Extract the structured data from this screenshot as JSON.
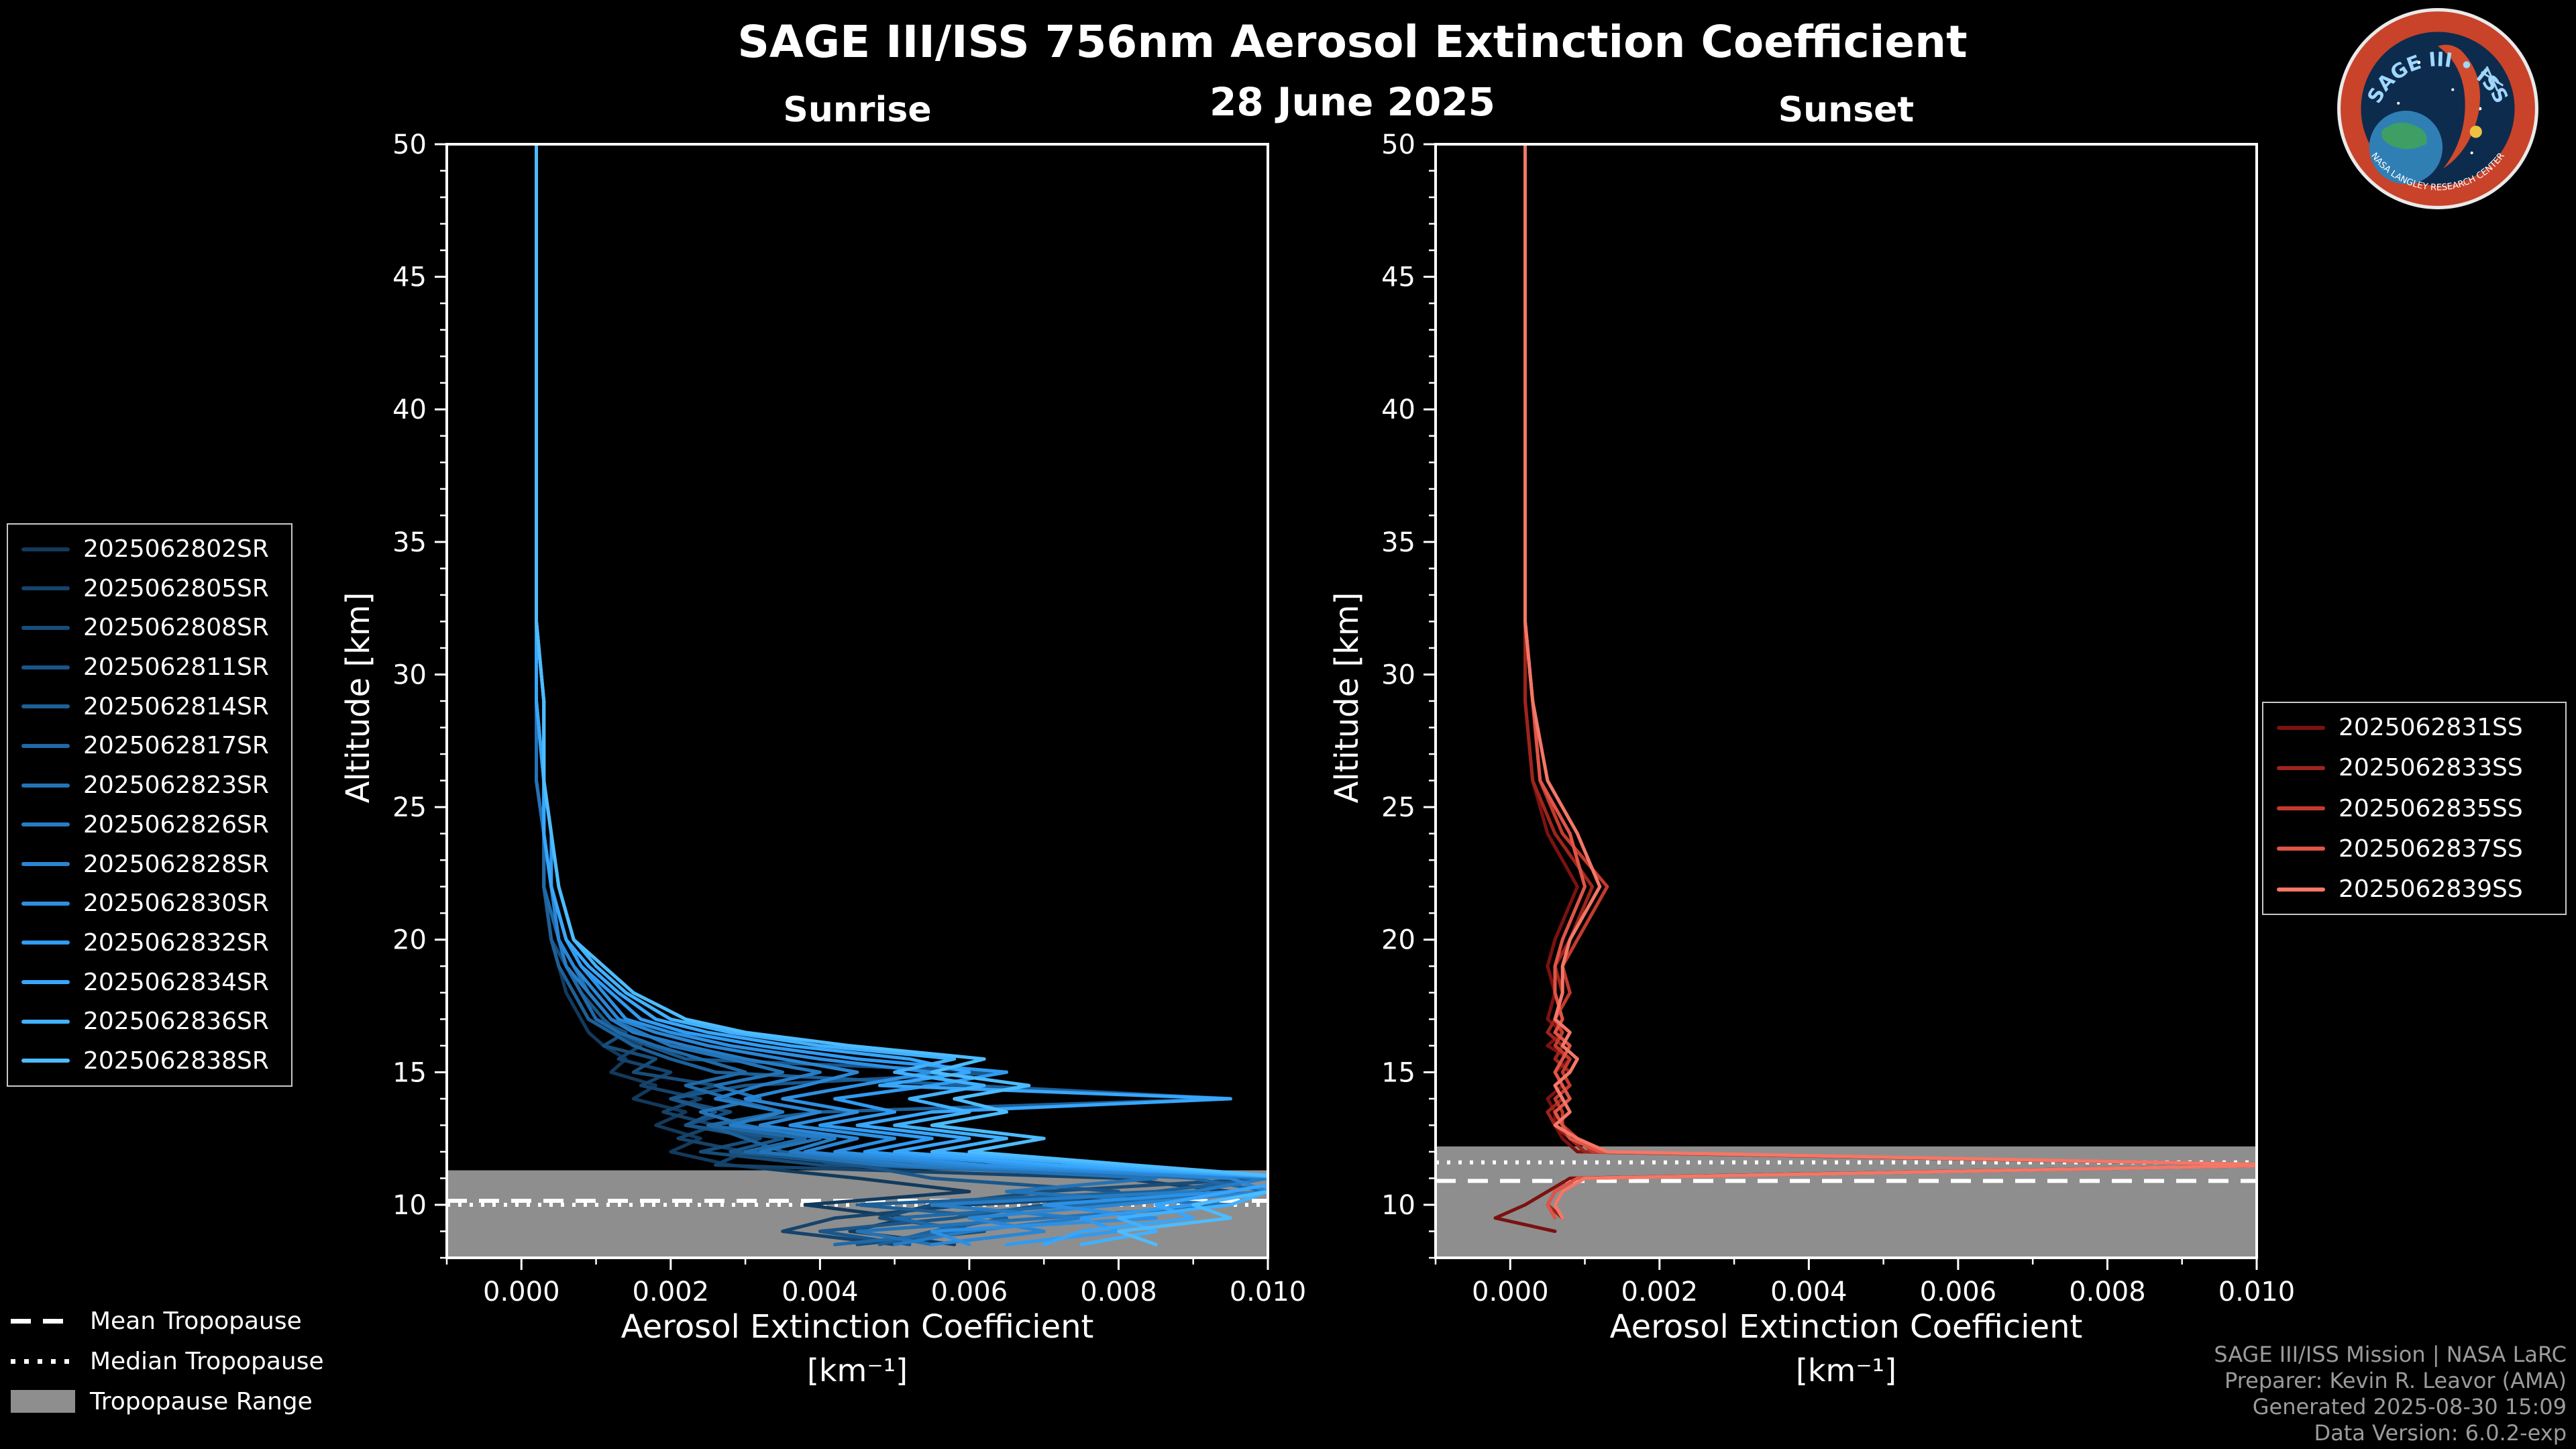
{
  "figure": {
    "title": "SAGE III/ISS 756nm Aerosol Extinction Coefficient",
    "date": "28 June 2025",
    "background_color": "#000000",
    "text_color": "#ffffff"
  },
  "logo": {
    "text": "SAGE III • ISS",
    "ring_text": "NASA LANGLEY RESEARCH CENTER",
    "ring_color": "#c8432a",
    "disc_color": "#0d2b4d",
    "title_color": "#9fd8ff"
  },
  "credits": {
    "lines": [
      "SAGE III/ISS Mission | NASA LaRC",
      "Preparer: Kevin R. Leavor (AMA)",
      "Generated 2025-08-30 15:09",
      "Data Version: 6.0.2-exp"
    ]
  },
  "tropopause_legend": {
    "mean_label": "Mean Tropopause",
    "median_label": "Median Tropopause",
    "range_label": "Tropopause Range",
    "range_color": "#8e8e8e"
  },
  "chart_data": [
    {
      "type": "line",
      "title": "Sunrise",
      "ylabel": "Altitude [km]",
      "xlabel": "Aerosol Extinction Coefficient",
      "xunit": "[km⁻¹]",
      "xlim": [
        -0.001,
        0.01
      ],
      "ylim": [
        8,
        50
      ],
      "x_tick_values": [
        0,
        0.002,
        0.004,
        0.006,
        0.008,
        0.01
      ],
      "x_tick_labels": [
        "0.000",
        "0.002",
        "0.004",
        "0.006",
        "0.008",
        "0.010"
      ],
      "y_tick_values": [
        10,
        15,
        20,
        25,
        30,
        35,
        40,
        45,
        50
      ],
      "tropopause": {
        "mean": 10.15,
        "median": 10.0,
        "range": [
          8.0,
          11.3
        ]
      },
      "altitudes": [
        50,
        47,
        44,
        41,
        38,
        35,
        32,
        29,
        26,
        24,
        22,
        20,
        19,
        18,
        17,
        16.5,
        16,
        15.5,
        15,
        14.5,
        14,
        13.5,
        13,
        12.5,
        12,
        11.5,
        11,
        10.5,
        10,
        9.5,
        9,
        8.5
      ],
      "series": [
        {
          "name": "2025062802SR",
          "color": "#123a5c",
          "values": [
            0.0002,
            0.0002,
            0.0002,
            0.0002,
            0.0002,
            0.0002,
            0.0002,
            0.0002,
            0.0002,
            0.0003,
            0.0003,
            0.0004,
            0.0005,
            0.0006,
            0.0008,
            0.0009,
            0.0011,
            0.0014,
            0.0012,
            0.0018,
            0.0015,
            0.0022,
            0.0018,
            0.0024,
            0.002,
            0.0028,
            0.0045,
            0.006,
            0.0038,
            0.0052,
            0.0044,
            0.0058
          ]
        },
        {
          "name": "2025062805SR",
          "color": "#15436b",
          "values": [
            0.0002,
            0.0002,
            0.0002,
            0.0002,
            0.0002,
            0.0002,
            0.0002,
            0.0002,
            0.0003,
            0.0003,
            0.0003,
            0.0004,
            0.0005,
            0.0007,
            0.0009,
            0.0012,
            0.0016,
            0.0013,
            0.002,
            0.0016,
            0.0024,
            0.0019,
            0.0026,
            0.0021,
            0.003,
            0.0026,
            0.008,
            0.0095,
            0.006,
            0.0042,
            0.0035,
            0.005
          ]
        },
        {
          "name": "2025062808SR",
          "color": "#174d7a",
          "values": [
            0.0002,
            0.0002,
            0.0002,
            0.0002,
            0.0002,
            0.0002,
            0.0002,
            0.0002,
            0.0002,
            0.0003,
            0.0003,
            0.0004,
            0.0006,
            0.0008,
            0.001,
            0.0014,
            0.0011,
            0.0018,
            0.0015,
            0.0026,
            0.002,
            0.0028,
            0.0022,
            0.0032,
            0.0024,
            0.004,
            0.01,
            0.007,
            0.0055,
            0.0048,
            0.0062,
            0.0045
          ]
        },
        {
          "name": "2025062811SR",
          "color": "#1a5689",
          "values": [
            0.0002,
            0.0002,
            0.0002,
            0.0002,
            0.0002,
            0.0002,
            0.0002,
            0.0002,
            0.0003,
            0.0003,
            0.0004,
            0.0005,
            0.0006,
            0.0008,
            0.0011,
            0.0013,
            0.0017,
            0.0022,
            0.0065,
            0.003,
            0.002,
            0.0026,
            0.0022,
            0.0035,
            0.0028,
            0.0045,
            0.0055,
            0.008,
            0.007,
            0.0058,
            0.004,
            0.0052
          ]
        },
        {
          "name": "2025062814SR",
          "color": "#1d6098",
          "values": [
            0.0002,
            0.0002,
            0.0002,
            0.0002,
            0.0002,
            0.0002,
            0.0002,
            0.0002,
            0.0002,
            0.0003,
            0.0003,
            0.0004,
            0.0005,
            0.0007,
            0.0009,
            0.0012,
            0.0015,
            0.002,
            0.0026,
            0.006,
            0.0095,
            0.004,
            0.0025,
            0.003,
            0.0035,
            0.005,
            0.01,
            0.0085,
            0.0045,
            0.0065,
            0.0055,
            0.0048
          ]
        },
        {
          "name": "2025062817SR",
          "color": "#2069a7",
          "values": [
            0.0002,
            0.0002,
            0.0002,
            0.0002,
            0.0002,
            0.0002,
            0.0002,
            0.0002,
            0.0003,
            0.0003,
            0.0003,
            0.0005,
            0.0006,
            0.0008,
            0.001,
            0.0013,
            0.0018,
            0.0024,
            0.003,
            0.0022,
            0.0028,
            0.0035,
            0.0025,
            0.0038,
            0.003,
            0.0055,
            0.009,
            0.01,
            0.0075,
            0.005,
            0.006,
            0.0042
          ]
        },
        {
          "name": "2025062823SR",
          "color": "#2373b6",
          "values": [
            0.0002,
            0.0002,
            0.0002,
            0.0002,
            0.0002,
            0.0002,
            0.0002,
            0.0002,
            0.0002,
            0.0003,
            0.0004,
            0.0005,
            0.0007,
            0.0009,
            0.0012,
            0.0016,
            0.002,
            0.0028,
            0.0035,
            0.0026,
            0.0032,
            0.0024,
            0.003,
            0.004,
            0.0032,
            0.0048,
            0.0085,
            0.0065,
            0.0095,
            0.007,
            0.0045,
            0.0055
          ]
        },
        {
          "name": "2025062826SR",
          "color": "#267cc5",
          "values": [
            0.0002,
            0.0002,
            0.0002,
            0.0002,
            0.0002,
            0.0002,
            0.0002,
            0.0002,
            0.0003,
            0.0003,
            0.0004,
            0.0005,
            0.0006,
            0.0009,
            0.0012,
            0.0015,
            0.0022,
            0.003,
            0.004,
            0.0032,
            0.0026,
            0.0035,
            0.0028,
            0.0042,
            0.0036,
            0.0052,
            0.01,
            0.009,
            0.0055,
            0.0075,
            0.006,
            0.005
          ]
        },
        {
          "name": "2025062828SR",
          "color": "#2a86d4",
          "values": [
            0.0002,
            0.0002,
            0.0002,
            0.0002,
            0.0002,
            0.0002,
            0.0002,
            0.0003,
            0.0003,
            0.0003,
            0.0004,
            0.0005,
            0.0007,
            0.001,
            0.0013,
            0.0018,
            0.0025,
            0.0035,
            0.0045,
            0.0038,
            0.003,
            0.004,
            0.0032,
            0.0045,
            0.0038,
            0.0058,
            0.0095,
            0.01,
            0.008,
            0.006,
            0.007,
            0.0055
          ]
        },
        {
          "name": "2025062830SR",
          "color": "#2d90e3",
          "values": [
            0.0002,
            0.0002,
            0.0002,
            0.0002,
            0.0002,
            0.0002,
            0.0002,
            0.0002,
            0.0003,
            0.0003,
            0.0004,
            0.0006,
            0.0008,
            0.0011,
            0.0014,
            0.002,
            0.0028,
            0.004,
            0.0055,
            0.0045,
            0.0035,
            0.0045,
            0.0036,
            0.005,
            0.0042,
            0.0062,
            0.0105,
            0.0095,
            0.007,
            0.0085,
            0.0055,
            0.006
          ]
        },
        {
          "name": "2025062832SR",
          "color": "#309bf2",
          "values": [
            0.0002,
            0.0002,
            0.0002,
            0.0002,
            0.0002,
            0.0002,
            0.0002,
            0.0003,
            0.0003,
            0.0004,
            0.0004,
            0.0006,
            0.0008,
            0.0012,
            0.0016,
            0.0022,
            0.0032,
            0.0045,
            0.0065,
            0.0055,
            0.0042,
            0.005,
            0.004,
            0.0055,
            0.0046,
            0.0068,
            0.0105,
            0.01,
            0.009,
            0.0075,
            0.008,
            0.0065
          ]
        },
        {
          "name": "2025062834SR",
          "color": "#38a6fb",
          "values": [
            0.0002,
            0.0002,
            0.0002,
            0.0002,
            0.0002,
            0.0002,
            0.0002,
            0.0002,
            0.0003,
            0.0003,
            0.0004,
            0.0006,
            0.0009,
            0.0013,
            0.0018,
            0.0025,
            0.0036,
            0.0052,
            0.006,
            0.0048,
            0.0095,
            0.0055,
            0.0045,
            0.006,
            0.005,
            0.0072,
            0.0105,
            0.0095,
            0.0085,
            0.009,
            0.0075,
            0.007
          ]
        },
        {
          "name": "2025062836SR",
          "color": "#41b1ff",
          "values": [
            0.0002,
            0.0002,
            0.0002,
            0.0002,
            0.0002,
            0.0002,
            0.0002,
            0.0003,
            0.0003,
            0.0004,
            0.0005,
            0.0007,
            0.001,
            0.0014,
            0.002,
            0.0028,
            0.004,
            0.0058,
            0.005,
            0.0062,
            0.0052,
            0.006,
            0.005,
            0.0065,
            0.0055,
            0.0078,
            0.0105,
            0.01,
            0.0095,
            0.008,
            0.0085,
            0.0075
          ]
        },
        {
          "name": "2025062838SR",
          "color": "#4dbcff",
          "values": [
            0.0002,
            0.0002,
            0.0002,
            0.0002,
            0.0002,
            0.0002,
            0.0002,
            0.0003,
            0.0003,
            0.0004,
            0.0005,
            0.0007,
            0.0011,
            0.0015,
            0.0022,
            0.003,
            0.0044,
            0.0062,
            0.0055,
            0.0068,
            0.0058,
            0.0065,
            0.0055,
            0.007,
            0.006,
            0.0082,
            0.0105,
            0.01,
            0.009,
            0.0095,
            0.008,
            0.0085
          ]
        }
      ]
    },
    {
      "type": "line",
      "title": "Sunset",
      "ylabel": "Altitude [km]",
      "xlabel": "Aerosol Extinction Coefficient",
      "xunit": "[km⁻¹]",
      "xlim": [
        -0.001,
        0.01
      ],
      "ylim": [
        8,
        50
      ],
      "x_tick_values": [
        0,
        0.002,
        0.004,
        0.006,
        0.008,
        0.01
      ],
      "x_tick_labels": [
        "0.000",
        "0.002",
        "0.004",
        "0.006",
        "0.008",
        "0.010"
      ],
      "y_tick_values": [
        10,
        15,
        20,
        25,
        30,
        35,
        40,
        45,
        50
      ],
      "tropopause": {
        "mean": 10.9,
        "median": 11.6,
        "range": [
          8.0,
          12.2
        ]
      },
      "altitudes": [
        50,
        47,
        44,
        41,
        38,
        35,
        32,
        29,
        26,
        24,
        22,
        20,
        19,
        18,
        17,
        16.5,
        16,
        15.5,
        15,
        14.5,
        14,
        13.5,
        13,
        12.5,
        12,
        11.5,
        11,
        10.5,
        10,
        9.5,
        9,
        8.5
      ],
      "series": [
        {
          "name": "2025062831SS",
          "color": "#7a1210",
          "values": [
            0.0002,
            0.0002,
            0.0002,
            0.0002,
            0.0002,
            0.0002,
            0.0002,
            0.0002,
            0.0003,
            0.0005,
            0.0009,
            0.0006,
            0.0005,
            0.0006,
            0.0005,
            0.0007,
            0.0005,
            0.0008,
            0.0006,
            0.0007,
            0.0005,
            0.0006,
            0.0006,
            0.0007,
            0.0009,
            0.0105,
            0.0008,
            0.0005,
            0.0002,
            -0.0002,
            0.0006,
            null
          ]
        },
        {
          "name": "2025062833SS",
          "color": "#9e241c",
          "values": [
            0.0002,
            0.0002,
            0.0002,
            0.0002,
            0.0002,
            0.0002,
            0.0002,
            0.0002,
            0.0003,
            0.0006,
            0.0011,
            0.0008,
            0.0006,
            0.0007,
            0.0006,
            0.0005,
            0.0007,
            0.0006,
            0.0008,
            0.0006,
            0.0007,
            0.0005,
            0.0006,
            0.0008,
            0.001,
            0.0105,
            0.0009,
            0.0006,
            0.0005,
            0.0007,
            null,
            null
          ]
        },
        {
          "name": "2025062835SS",
          "color": "#c43a2e",
          "values": [
            0.0002,
            0.0002,
            0.0002,
            0.0002,
            0.0002,
            0.0002,
            0.0002,
            0.0003,
            0.0004,
            0.0007,
            0.0013,
            0.0009,
            0.0007,
            0.0008,
            0.0006,
            0.0007,
            0.0006,
            0.0008,
            0.0007,
            0.0008,
            0.0006,
            0.0007,
            0.0007,
            0.0009,
            0.0011,
            0.0105,
            0.001,
            0.0007,
            0.0006,
            null,
            null,
            null
          ]
        },
        {
          "name": "2025062837SS",
          "color": "#e05447",
          "values": [
            0.0002,
            0.0002,
            0.0002,
            0.0002,
            0.0002,
            0.0002,
            0.0002,
            0.0003,
            0.0004,
            0.0008,
            0.001,
            0.0007,
            0.0006,
            0.0006,
            0.0007,
            0.0006,
            0.0008,
            0.0007,
            0.0006,
            0.0007,
            0.0008,
            0.0006,
            0.0007,
            0.0008,
            0.0012,
            0.0105,
            0.0009,
            0.0006,
            0.0005,
            0.0006,
            null,
            null
          ]
        },
        {
          "name": "2025062839SS",
          "color": "#f47767",
          "values": [
            0.0002,
            0.0002,
            0.0002,
            0.0002,
            0.0002,
            0.0002,
            0.0002,
            0.0003,
            0.0005,
            0.0009,
            0.0012,
            0.0008,
            0.0007,
            0.0007,
            0.0006,
            0.0008,
            0.0007,
            0.0009,
            0.0008,
            0.0006,
            0.0007,
            0.0008,
            0.0006,
            0.0009,
            0.0013,
            0.0105,
            0.001,
            0.0007,
            0.0006,
            0.0007,
            null,
            null
          ]
        }
      ]
    }
  ]
}
